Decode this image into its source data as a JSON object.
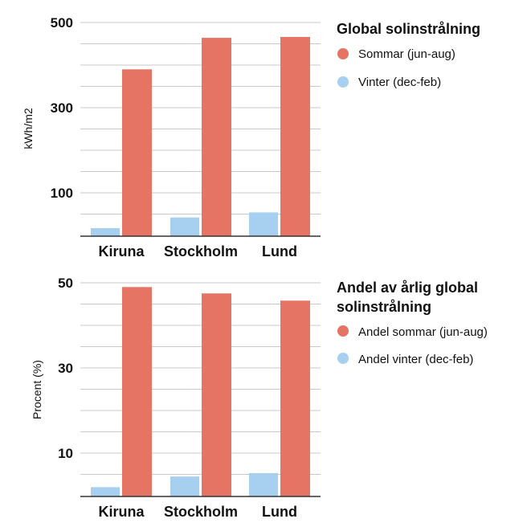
{
  "colors": {
    "summer": "#e57465",
    "winter": "#a7cff0",
    "grid": "#c8c8c8",
    "axis": "#333333"
  },
  "chart_data": [
    {
      "type": "bar",
      "categories": [
        "Kiruna",
        "Stockholm",
        "Lund"
      ],
      "ylabel": "kWh/m2",
      "yticks": [
        100,
        300,
        500
      ],
      "ylim": [
        0,
        500
      ],
      "grid": true,
      "legend_title": "Global solinstrålning",
      "legend_position": "right",
      "series": [
        {
          "name": "Vinter (dec-feb)",
          "color": "#a7cff0",
          "values": [
            17,
            42,
            54
          ]
        },
        {
          "name": "Sommar (jun-aug)",
          "color": "#e57465",
          "values": [
            390,
            464,
            466
          ]
        }
      ]
    },
    {
      "type": "bar",
      "categories": [
        "Kiruna",
        "Stockholm",
        "Lund"
      ],
      "ylabel": "Procent (%)",
      "yticks": [
        10,
        30,
        50
      ],
      "ylim": [
        0,
        50
      ],
      "grid": true,
      "legend_title_lines": [
        "Andel av årlig global",
        "solinstrålning"
      ],
      "legend_position": "right",
      "series": [
        {
          "name": "Andel vinter (dec-feb)",
          "color": "#a7cff0",
          "values": [
            2,
            4.5,
            5.3
          ]
        },
        {
          "name": "Andel sommar (jun-aug)",
          "color": "#e57465",
          "values": [
            49,
            47.5,
            45.8
          ]
        }
      ]
    }
  ]
}
